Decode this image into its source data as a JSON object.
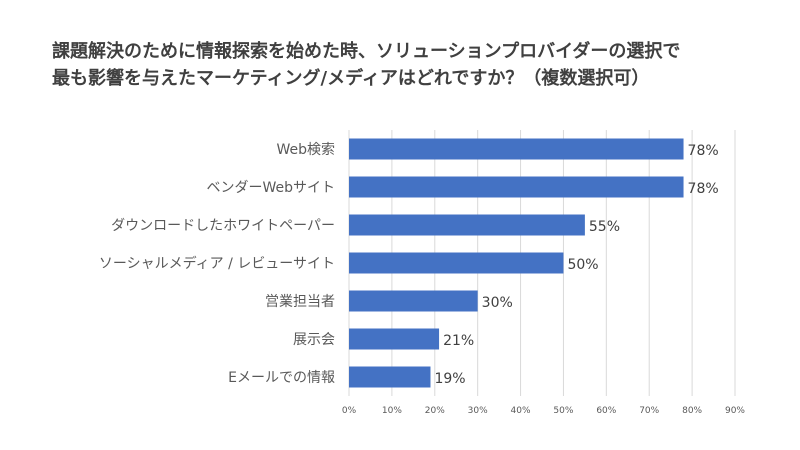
{
  "chart_data": {
    "type": "bar",
    "orientation": "horizontal",
    "title": [
      "課題解決のために情報探索を始めた時、ソリューションプロバイダーの選択で",
      "最も影響を与えたマーケティング/メディアはどれですか？（複数選択可）"
    ],
    "categories": [
      "Web検索",
      "ベンダーWebサイト",
      "ダウンロードしたホワイトペーパー",
      "ソーシャルメディア / レビューサイト",
      "営業担当者",
      "展示会",
      "Eメールでの情報"
    ],
    "values": [
      78,
      78,
      55,
      50,
      30,
      21,
      19
    ],
    "value_labels": [
      "78%",
      "78%",
      "55%",
      "50%",
      "30%",
      "21%",
      "19%"
    ],
    "xlim": [
      0,
      90
    ],
    "xticks": [
      "0%",
      "10%",
      "20%",
      "30%",
      "40%",
      "50%",
      "60%",
      "70%",
      "80%",
      "90%"
    ],
    "grid": true,
    "legend": "none",
    "bar_color": "#4472c4"
  }
}
